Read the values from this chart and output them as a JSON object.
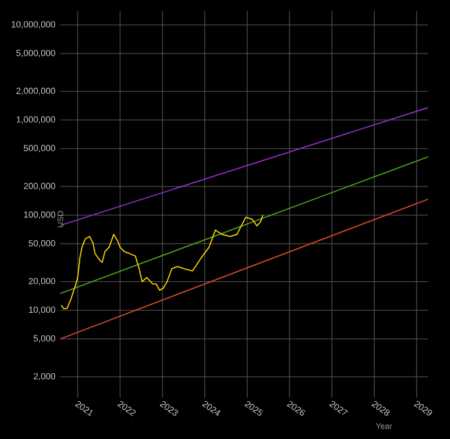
{
  "chart_data": {
    "type": "line",
    "xlabel": "Year",
    "ylabel": "USD",
    "log": "y",
    "grid": true,
    "marker": "none",
    "xlim": [
      2020.59,
      2029.27
    ],
    "ylim": [
      1200,
      14000000
    ],
    "xticks": [
      2021,
      2022,
      2023,
      2024,
      2025,
      2026,
      2027,
      2028,
      2029
    ],
    "yticks": [
      {
        "value": 2000,
        "label": "2,000"
      },
      {
        "value": 5000,
        "label": "5,000"
      },
      {
        "value": 10000,
        "label": "10,000"
      },
      {
        "value": 20000,
        "label": "20,000"
      },
      {
        "value": 50000,
        "label": "50,000"
      },
      {
        "value": 100000,
        "label": "100,000"
      },
      {
        "value": 200000,
        "label": "200,000"
      },
      {
        "value": 500000,
        "label": "500,000"
      },
      {
        "value": 1000000,
        "label": "1,000,000"
      },
      {
        "value": 2000000,
        "label": "2,000,000"
      },
      {
        "value": 5000000,
        "label": "5,000,000"
      },
      {
        "value": 10000000,
        "label": "10,000,000"
      }
    ],
    "series": [
      {
        "color": "#9b30d0",
        "x": [
          2020.59,
          2029.27
        ],
        "values": [
          78000,
          1350000
        ]
      },
      {
        "color": "#4caf20",
        "x": [
          2020.59,
          2029.27
        ],
        "values": [
          15000,
          410000
        ]
      },
      {
        "color": "#e0502a",
        "x": [
          2020.59,
          2029.27
        ],
        "values": [
          5000,
          147000
        ]
      },
      {
        "color": "#ffd700",
        "x": [
          2020.61,
          2020.67,
          2020.75,
          2020.84,
          2020.94,
          2021.0,
          2021.05,
          2021.1,
          2021.18,
          2021.28,
          2021.36,
          2021.41,
          2021.52,
          2021.58,
          2021.64,
          2021.74,
          2021.85,
          2021.94,
          2022.0,
          2022.1,
          2022.23,
          2022.36,
          2022.45,
          2022.52,
          2022.63,
          2022.77,
          2022.85,
          2022.93,
          2023.02,
          2023.11,
          2023.22,
          2023.36,
          2023.51,
          2023.71,
          2023.91,
          2024.1,
          2024.25,
          2024.4,
          2024.6,
          2024.76,
          2024.86,
          2024.97,
          2025.12,
          2025.23,
          2025.32,
          2025.37
        ],
        "values": [
          11300,
          10400,
          10500,
          13100,
          18000,
          22100,
          35300,
          45900,
          56400,
          59600,
          51000,
          39300,
          33600,
          31900,
          41300,
          45900,
          62800,
          53700,
          45900,
          41300,
          39300,
          37200,
          27300,
          20000,
          22100,
          18900,
          18900,
          16200,
          17100,
          20000,
          27300,
          28800,
          27300,
          25900,
          35300,
          45900,
          69700,
          62800,
          59600,
          62800,
          77100,
          95000,
          90200,
          77100,
          85700,
          100000
        ]
      }
    ]
  }
}
